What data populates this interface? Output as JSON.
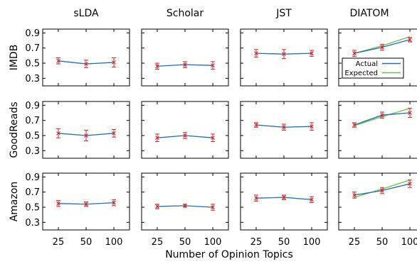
{
  "colors": {
    "actual": "#1f6fb4",
    "expected": "#6cc04a",
    "errorbar": "#d62728",
    "frame": "#000000"
  },
  "chart_data": {
    "type": "line",
    "layout": "grid 3x4 of small multiples",
    "columns": [
      "sLDA",
      "Scholar",
      "JST",
      "DIATOM"
    ],
    "rows": [
      "IMDB",
      "GoodReads",
      "Amazon"
    ],
    "x": [
      "25",
      "50",
      "100"
    ],
    "y_ticks": [
      "0.9",
      "0.7",
      "0.5",
      "0.3"
    ],
    "ylim": [
      0.2,
      0.95
    ],
    "xlabel": "Number of Opinion Topics",
    "legend": {
      "placement": "inside DIATOM/IMDB panel, lower-right",
      "entries": [
        "Actual",
        "Expected"
      ]
    },
    "panels": [
      {
        "row": "IMDB",
        "col": "sLDA",
        "actual": [
          0.53,
          0.49,
          0.51
        ],
        "err": [
          0.04,
          0.05,
          0.06
        ]
      },
      {
        "row": "IMDB",
        "col": "Scholar",
        "actual": [
          0.46,
          0.48,
          0.47
        ],
        "err": [
          0.04,
          0.04,
          0.05
        ]
      },
      {
        "row": "IMDB",
        "col": "JST",
        "actual": [
          0.63,
          0.62,
          0.63
        ],
        "err": [
          0.05,
          0.06,
          0.04
        ]
      },
      {
        "row": "IMDB",
        "col": "DIATOM",
        "actual": [
          0.63,
          0.71,
          0.81
        ],
        "expected": [
          0.63,
          0.73,
          0.85
        ],
        "err": [
          0.04,
          0.04,
          0.03
        ]
      },
      {
        "row": "GoodReads",
        "col": "sLDA",
        "actual": [
          0.53,
          0.5,
          0.53
        ],
        "err": [
          0.06,
          0.07,
          0.05
        ]
      },
      {
        "row": "GoodReads",
        "col": "Scholar",
        "actual": [
          0.47,
          0.5,
          0.47
        ],
        "err": [
          0.05,
          0.04,
          0.05
        ]
      },
      {
        "row": "GoodReads",
        "col": "JST",
        "actual": [
          0.64,
          0.61,
          0.62
        ],
        "err": [
          0.03,
          0.04,
          0.05
        ]
      },
      {
        "row": "GoodReads",
        "col": "DIATOM",
        "actual": [
          0.64,
          0.77,
          0.8
        ],
        "expected": [
          0.63,
          0.75,
          0.86
        ],
        "err": [
          0.03,
          0.04,
          0.06
        ]
      },
      {
        "row": "Amazon",
        "col": "sLDA",
        "actual": [
          0.55,
          0.54,
          0.56
        ],
        "err": [
          0.04,
          0.03,
          0.04
        ]
      },
      {
        "row": "Amazon",
        "col": "Scholar",
        "actual": [
          0.51,
          0.52,
          0.5
        ],
        "err": [
          0.03,
          0.02,
          0.04
        ]
      },
      {
        "row": "Amazon",
        "col": "JST",
        "actual": [
          0.62,
          0.63,
          0.6
        ],
        "err": [
          0.04,
          0.03,
          0.04
        ]
      },
      {
        "row": "Amazon",
        "col": "DIATOM",
        "actual": [
          0.66,
          0.72,
          0.81
        ],
        "expected": [
          0.63,
          0.74,
          0.86
        ],
        "err": [
          0.04,
          0.04,
          0.05
        ]
      }
    ]
  }
}
